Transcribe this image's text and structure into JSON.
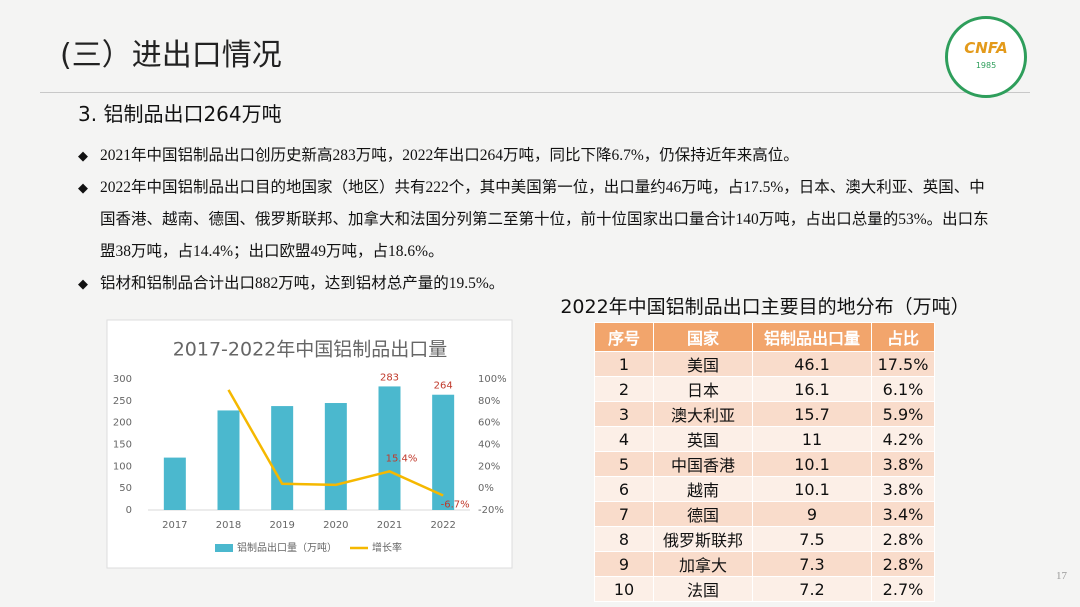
{
  "header": {
    "title": "(三）进出口情况",
    "page_number": "17",
    "logo_text": "CNFA",
    "logo_year": "1985"
  },
  "section": {
    "title": "3. 铝制品出口264万吨",
    "bullets": [
      "2021年中国铝制品出口创历史新高283万吨，2022年出口264万吨，同比下降6.7%，仍保持近年来高位。",
      "2022年中国铝制品出口目的地国家（地区）共有222个，其中美国第一位，出口量约46万吨，占17.5%，日本、澳大利亚、英国、中国香港、越南、德国、俄罗斯联邦、加拿大和法国分列第二至第十位，前十位国家出口量合计140万吨，占出口总量的53%。出口东盟38万吨，占14.4%；出口欧盟49万吨，占18.6%。",
      "铝材和铝制品合计出口882万吨，达到铝材总产量的19.5%。"
    ]
  },
  "chart_data": {
    "type": "bar-line",
    "title": "2017-2022年中国铝制品出口量",
    "categories": [
      "2017",
      "2018",
      "2019",
      "2020",
      "2021",
      "2022"
    ],
    "series": [
      {
        "name": "铝制品出口量（万吨）",
        "color": "#4bb8ce",
        "type": "bar",
        "values": [
          120,
          228,
          238,
          245,
          283,
          264
        ],
        "value_labels": [
          null,
          null,
          null,
          null,
          "283",
          "264"
        ]
      },
      {
        "name": "增长率",
        "color": "#f5b800",
        "type": "line",
        "axis": "y2",
        "values": [
          null,
          90,
          4,
          3,
          15.4,
          -6.7
        ],
        "value_labels": [
          null,
          null,
          null,
          null,
          "15.4%",
          "-6.7%"
        ]
      }
    ],
    "ylim": [
      0,
      300
    ],
    "yticks": [
      0,
      50,
      100,
      150,
      200,
      250,
      300
    ],
    "y2lim": [
      -20,
      100
    ],
    "y2ticks": [
      {
        "value": -20,
        "label": "-20%"
      },
      {
        "value": 0,
        "label": "0%"
      },
      {
        "value": 20,
        "label": "20%"
      },
      {
        "value": 40,
        "label": "40%"
      },
      {
        "value": 60,
        "label": "60%"
      },
      {
        "value": 80,
        "label": "80%"
      },
      {
        "value": 100,
        "label": "100%"
      }
    ],
    "grid": false,
    "legend": "bottom"
  },
  "table": {
    "title": "2022年中国铝制品出口主要目的地分布（万吨）",
    "columns": [
      "序号",
      "国家",
      "铝制品出口量",
      "占比"
    ],
    "rows": [
      [
        "1",
        "美国",
        "46.1",
        "17.5%"
      ],
      [
        "2",
        "日本",
        "16.1",
        "6.1%"
      ],
      [
        "3",
        "澳大利亚",
        "15.7",
        "5.9%"
      ],
      [
        "4",
        "英国",
        "11",
        "4.2%"
      ],
      [
        "5",
        "中国香港",
        "10.1",
        "3.8%"
      ],
      [
        "6",
        "越南",
        "10.1",
        "3.8%"
      ],
      [
        "7",
        "德国",
        "9",
        "3.4%"
      ],
      [
        "8",
        "俄罗斯联邦",
        "7.5",
        "2.8%"
      ],
      [
        "9",
        "加拿大",
        "7.3",
        "2.8%"
      ],
      [
        "10",
        "法国",
        "7.2",
        "2.7%"
      ]
    ]
  }
}
